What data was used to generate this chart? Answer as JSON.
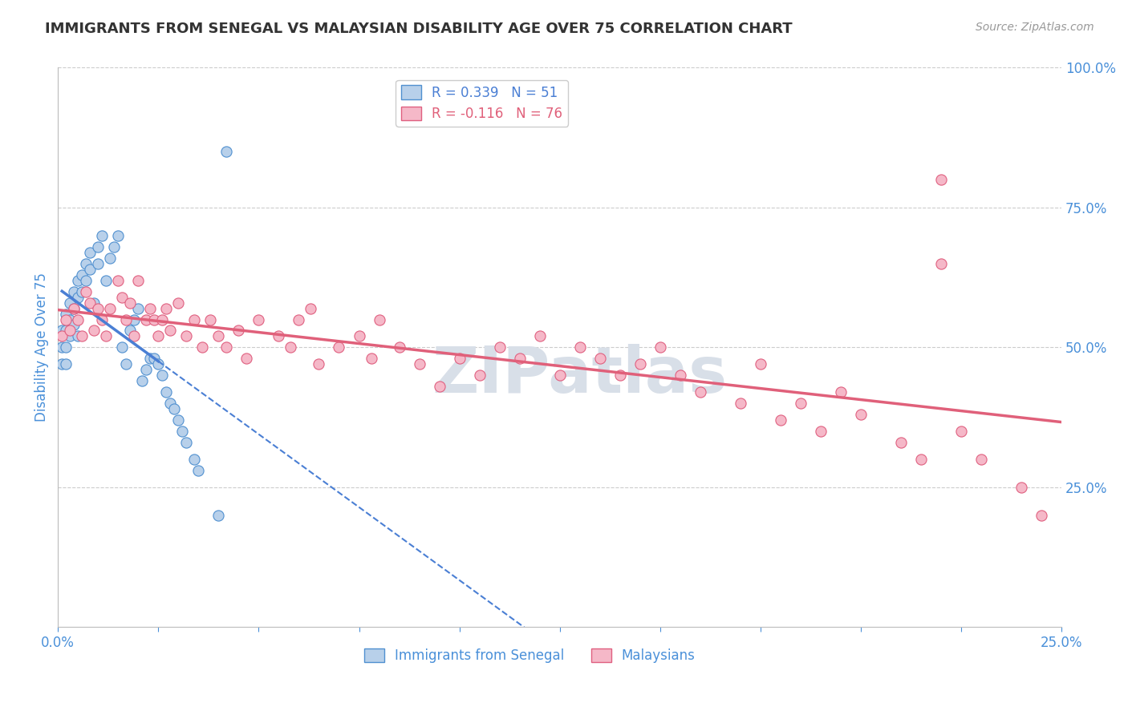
{
  "title": "IMMIGRANTS FROM SENEGAL VS MALAYSIAN DISABILITY AGE OVER 75 CORRELATION CHART",
  "source": "Source: ZipAtlas.com",
  "ylabel": "Disability Age Over 75",
  "xlim": [
    0.0,
    0.25
  ],
  "ylim": [
    0.0,
    1.0
  ],
  "yticks_right": [
    0.25,
    0.5,
    0.75,
    1.0
  ],
  "yticklabels_right": [
    "25.0%",
    "50.0%",
    "75.0%",
    "100.0%"
  ],
  "legend_r_blue": "R = 0.339",
  "legend_n_blue": "N = 51",
  "legend_r_pink": "R = -0.116",
  "legend_n_pink": "N = 76",
  "legend_label_blue": "Immigrants from Senegal",
  "legend_label_pink": "Malaysians",
  "blue_fill": "#b8d0ea",
  "pink_fill": "#f5b8c8",
  "blue_edge": "#5090d0",
  "pink_edge": "#e06080",
  "blue_line": "#4a7fd4",
  "pink_line": "#e0607a",
  "grid_color": "#cccccc",
  "tick_color": "#4a90d9",
  "watermark_color": "#d8dfe8",
  "blue_x": [
    0.001,
    0.001,
    0.001,
    0.002,
    0.002,
    0.002,
    0.002,
    0.003,
    0.003,
    0.003,
    0.004,
    0.004,
    0.004,
    0.005,
    0.005,
    0.005,
    0.006,
    0.006,
    0.007,
    0.007,
    0.008,
    0.008,
    0.009,
    0.01,
    0.01,
    0.011,
    0.012,
    0.013,
    0.014,
    0.015,
    0.016,
    0.017,
    0.018,
    0.019,
    0.02,
    0.021,
    0.022,
    0.023,
    0.024,
    0.025,
    0.026,
    0.027,
    0.028,
    0.029,
    0.03,
    0.031,
    0.032,
    0.034,
    0.035,
    0.04,
    0.042
  ],
  "blue_y": [
    0.53,
    0.5,
    0.47,
    0.56,
    0.53,
    0.5,
    0.47,
    0.58,
    0.55,
    0.52,
    0.6,
    0.57,
    0.54,
    0.62,
    0.59,
    0.52,
    0.63,
    0.6,
    0.65,
    0.62,
    0.67,
    0.64,
    0.58,
    0.68,
    0.65,
    0.7,
    0.62,
    0.66,
    0.68,
    0.7,
    0.5,
    0.47,
    0.53,
    0.55,
    0.57,
    0.44,
    0.46,
    0.48,
    0.48,
    0.47,
    0.45,
    0.42,
    0.4,
    0.39,
    0.37,
    0.35,
    0.33,
    0.3,
    0.28,
    0.2,
    0.85
  ],
  "pink_x": [
    0.001,
    0.002,
    0.003,
    0.004,
    0.005,
    0.006,
    0.007,
    0.008,
    0.009,
    0.01,
    0.011,
    0.012,
    0.013,
    0.015,
    0.016,
    0.017,
    0.018,
    0.019,
    0.02,
    0.022,
    0.023,
    0.024,
    0.025,
    0.026,
    0.027,
    0.028,
    0.03,
    0.032,
    0.034,
    0.036,
    0.038,
    0.04,
    0.042,
    0.045,
    0.047,
    0.05,
    0.055,
    0.058,
    0.06,
    0.063,
    0.065,
    0.07,
    0.075,
    0.078,
    0.08,
    0.085,
    0.09,
    0.095,
    0.1,
    0.105,
    0.11,
    0.115,
    0.12,
    0.125,
    0.13,
    0.135,
    0.14,
    0.145,
    0.15,
    0.155,
    0.16,
    0.17,
    0.175,
    0.18,
    0.185,
    0.19,
    0.195,
    0.2,
    0.21,
    0.215,
    0.22,
    0.225,
    0.23,
    0.24,
    0.245,
    0.22
  ],
  "pink_y": [
    0.52,
    0.55,
    0.53,
    0.57,
    0.55,
    0.52,
    0.6,
    0.58,
    0.53,
    0.57,
    0.55,
    0.52,
    0.57,
    0.62,
    0.59,
    0.55,
    0.58,
    0.52,
    0.62,
    0.55,
    0.57,
    0.55,
    0.52,
    0.55,
    0.57,
    0.53,
    0.58,
    0.52,
    0.55,
    0.5,
    0.55,
    0.52,
    0.5,
    0.53,
    0.48,
    0.55,
    0.52,
    0.5,
    0.55,
    0.57,
    0.47,
    0.5,
    0.52,
    0.48,
    0.55,
    0.5,
    0.47,
    0.43,
    0.48,
    0.45,
    0.5,
    0.48,
    0.52,
    0.45,
    0.5,
    0.48,
    0.45,
    0.47,
    0.5,
    0.45,
    0.42,
    0.4,
    0.47,
    0.37,
    0.4,
    0.35,
    0.42,
    0.38,
    0.33,
    0.3,
    0.65,
    0.35,
    0.3,
    0.25,
    0.2,
    0.8
  ]
}
